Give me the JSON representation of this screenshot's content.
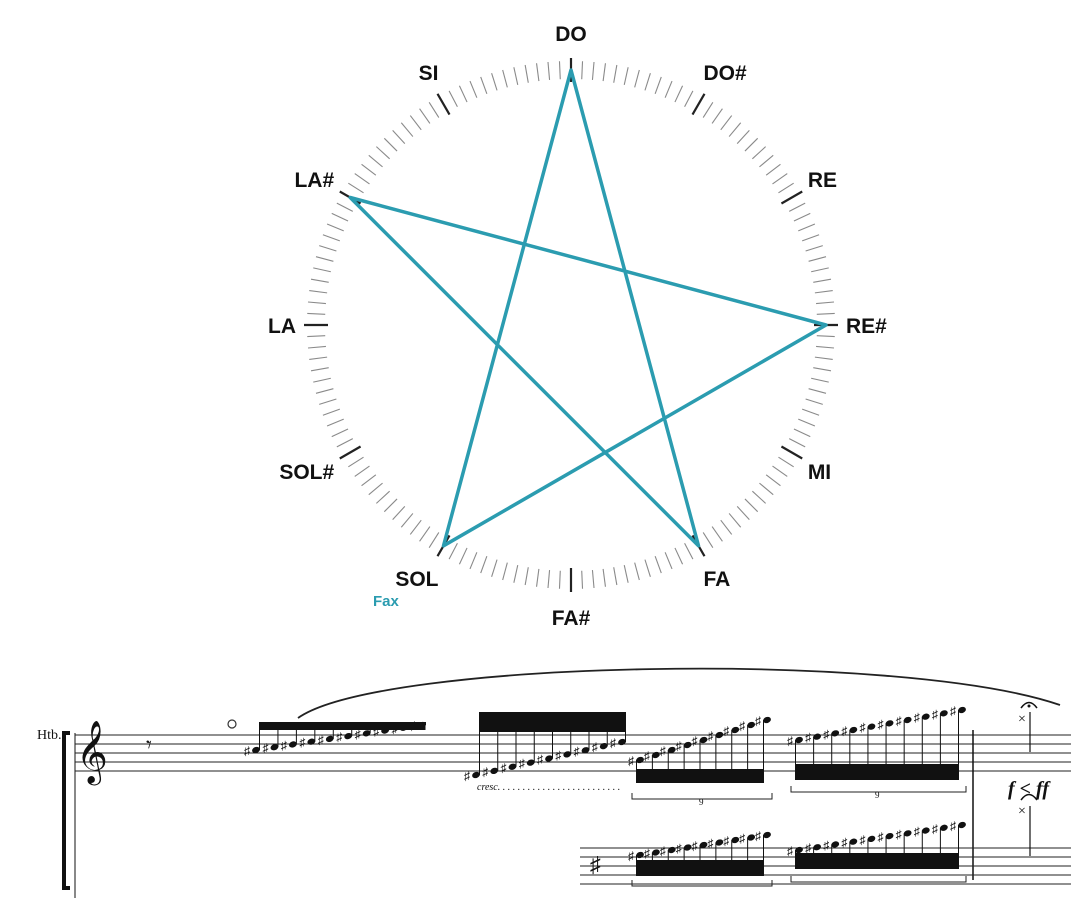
{
  "diagram": {
    "notes": [
      "DO",
      "DO#",
      "RE",
      "RE#",
      "MI",
      "FA",
      "FA#",
      "SOL",
      "SOL#",
      "LA",
      "LA#",
      "SI"
    ],
    "path_note_indices": [
      7,
      0,
      5,
      10,
      3
    ],
    "path_color": "#2b9cb0",
    "dial_color": "#8a8a8a",
    "annotation": {
      "text": "Fax",
      "color": "#2b9cb0"
    }
  },
  "score": {
    "instrument_label": "Htb.",
    "cresc_text": "cresc. . . . . . . . . . . . . . . . . . . . . . . . .",
    "dynamic_text": "f < ff",
    "tuplet_number": "9"
  }
}
